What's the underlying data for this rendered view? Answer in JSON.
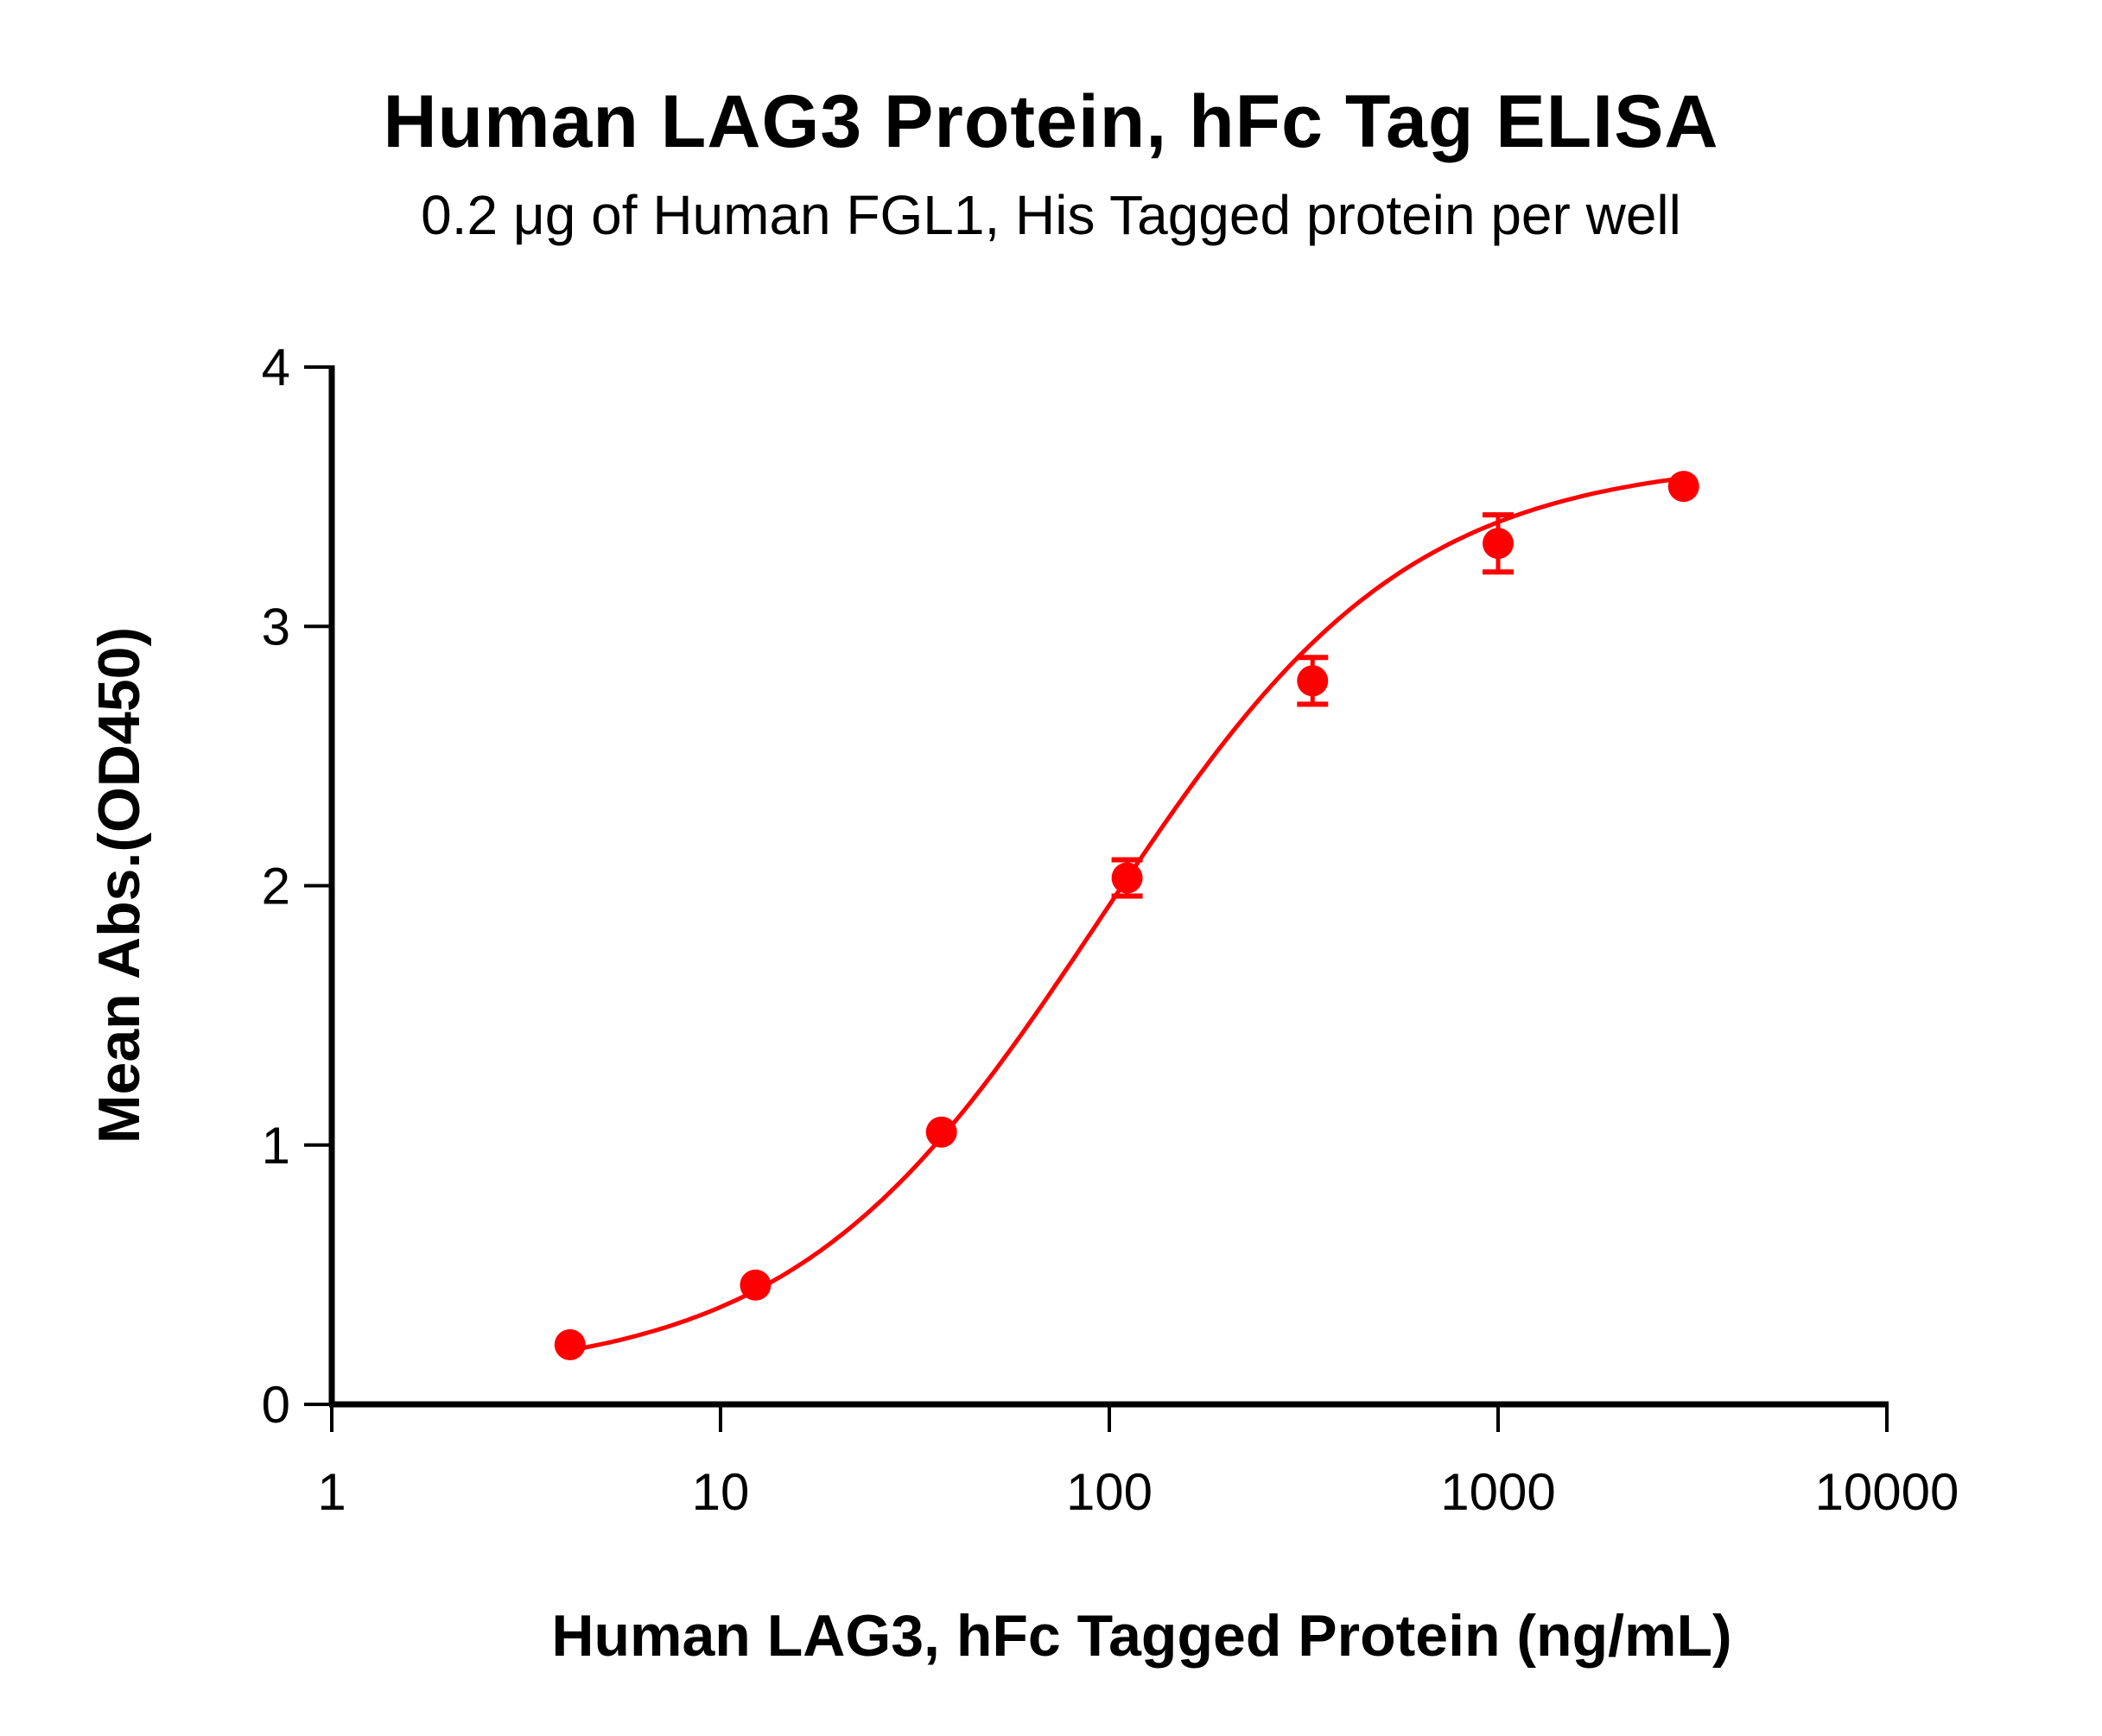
{
  "chart_data": {
    "type": "scatter",
    "title": "Human LAG3 Protein, hFc Tag ELISA",
    "subtitle": "0.2 μg of Human FGL1, His Tagged protein per well",
    "xlabel": "Human LAG3, hFc Tagged Protein (ng/mL)",
    "ylabel": "Mean Abs.(OD450)",
    "xscale": "log",
    "xlim": [
      1,
      10000
    ],
    "ylim": [
      0,
      4
    ],
    "xticks": [
      1,
      10,
      100,
      1000,
      10000
    ],
    "xtick_labels": [
      "1",
      "10",
      "100",
      "1000",
      "10000"
    ],
    "yticks": [
      0,
      1,
      2,
      3,
      4
    ],
    "ytick_labels": [
      "0",
      "1",
      "2",
      "3",
      "4"
    ],
    "grid": false,
    "legend": null,
    "series": [
      {
        "name": "Human LAG3, hFc Tagged Protein",
        "color": "#ff0000",
        "marker": "circle",
        "fit": "4PL sigmoidal",
        "x": [
          4.1,
          12.3,
          37.0,
          111.1,
          333.3,
          1000,
          3000
        ],
        "y": [
          0.23,
          0.46,
          1.05,
          2.03,
          2.79,
          3.32,
          3.54
        ],
        "error": [
          0.0,
          0.0,
          0.0,
          0.07,
          0.09,
          0.11,
          0.0
        ]
      }
    ],
    "fit_params": {
      "bottom": 0.1,
      "top": 3.65,
      "ec50": 95,
      "hill": 1.1
    }
  }
}
